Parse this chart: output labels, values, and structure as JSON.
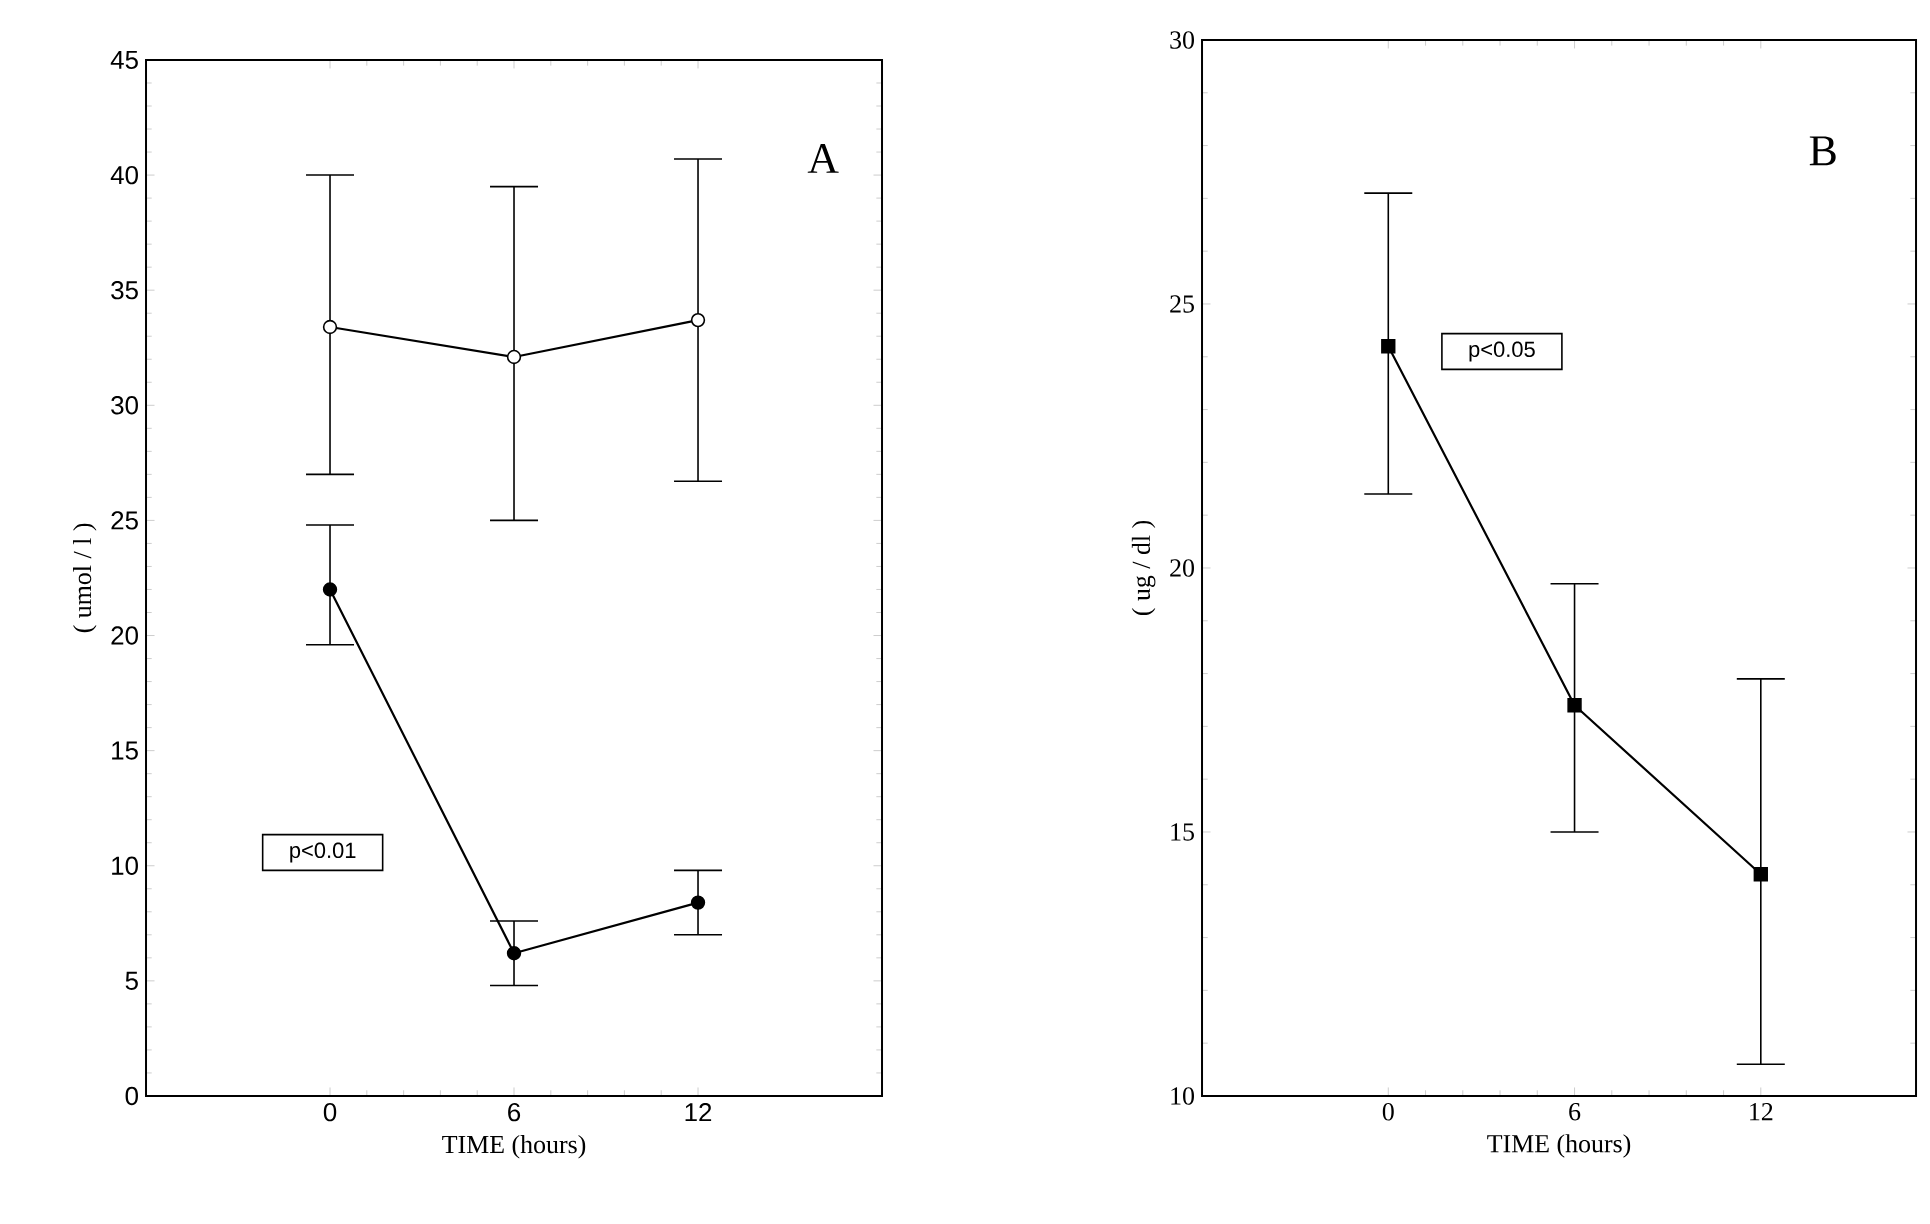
{
  "chart_data": [
    {
      "type": "line",
      "xlabel": "TIME (hours)",
      "ylabel": "( umol / l )",
      "x": [
        0,
        6,
        12
      ],
      "xlim": [
        -6,
        18
      ],
      "ylim": [
        0,
        45
      ],
      "xticks": [
        0,
        6,
        12
      ],
      "yticks": [
        0,
        5,
        10,
        15,
        20,
        25,
        30,
        35,
        40,
        45
      ],
      "annotations": [
        "A",
        "p<0.01"
      ],
      "series": [
        {
          "color": "#000000",
          "marker": "circle",
          "colors": [
            "#ffffff",
            "#ffffff",
            "#ffffff"
          ],
          "values": [
            33.4,
            32.1,
            33.7
          ],
          "errors": [
            [
              27.0,
              40.0
            ],
            [
              25.0,
              39.5
            ],
            [
              26.7,
              40.7
            ]
          ]
        },
        {
          "color": "#000000",
          "marker": "circle",
          "values": [
            22.0,
            6.2,
            8.4
          ],
          "errors": [
            [
              19.6,
              24.8
            ],
            [
              4.8,
              7.6
            ],
            [
              7.0,
              9.8
            ]
          ]
        }
      ]
    },
    {
      "type": "line",
      "xlabel": "TIME (hours)",
      "ylabel": "( ug / dl )",
      "x": [
        0,
        6,
        12
      ],
      "xlim": [
        -6,
        17
      ],
      "ylim": [
        10,
        30
      ],
      "xticks": [
        0,
        6,
        12
      ],
      "yticks": [
        10,
        15,
        20,
        25,
        30
      ],
      "annotations": [
        "B",
        "p<0.05"
      ],
      "series": [
        {
          "color": "#000000",
          "marker": "square",
          "values": [
            24.2,
            17.4,
            14.2
          ],
          "errors": [
            [
              21.4,
              27.1
            ],
            [
              15.0,
              19.7
            ],
            [
              10.6,
              17.9
            ]
          ]
        }
      ]
    }
  ]
}
